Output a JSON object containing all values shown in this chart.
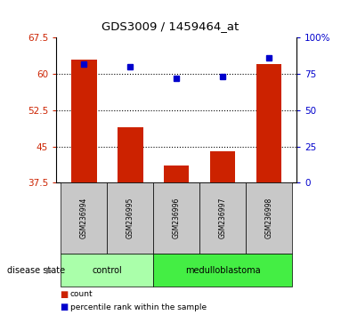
{
  "title": "GDS3009 / 1459464_at",
  "samples": [
    "GSM236994",
    "GSM236995",
    "GSM236996",
    "GSM236997",
    "GSM236998"
  ],
  "counts": [
    63.0,
    49.0,
    41.0,
    44.0,
    62.0
  ],
  "percentiles": [
    82,
    80,
    72,
    73,
    86
  ],
  "ylim_left": [
    37.5,
    67.5
  ],
  "ylim_right": [
    0,
    100
  ],
  "yticks_left": [
    37.5,
    45.0,
    52.5,
    60.0,
    67.5
  ],
  "yticks_right": [
    0,
    25,
    50,
    75,
    100
  ],
  "ytick_labels_left": [
    "37.5",
    "45",
    "52.5",
    "60",
    "67.5"
  ],
  "ytick_labels_right": [
    "0",
    "25",
    "50",
    "75",
    "100%"
  ],
  "hlines": [
    45.0,
    52.5,
    60.0
  ],
  "bar_color": "#cc2200",
  "dot_color": "#0000cc",
  "groups": [
    {
      "label": "control",
      "indices": [
        0,
        1
      ],
      "color": "#aaffaa"
    },
    {
      "label": "medulloblastoma",
      "indices": [
        2,
        3,
        4
      ],
      "color": "#44ee44"
    }
  ],
  "disease_state_label": "disease state",
  "legend_count_label": "count",
  "legend_percentile_label": "percentile rank within the sample",
  "bar_color_left": "#cc2200",
  "dot_color_right": "#0000cc",
  "background_color": "#ffffff",
  "tick_area_bg": "#c8c8c8",
  "figsize": [
    3.83,
    3.54
  ],
  "dpi": 100
}
